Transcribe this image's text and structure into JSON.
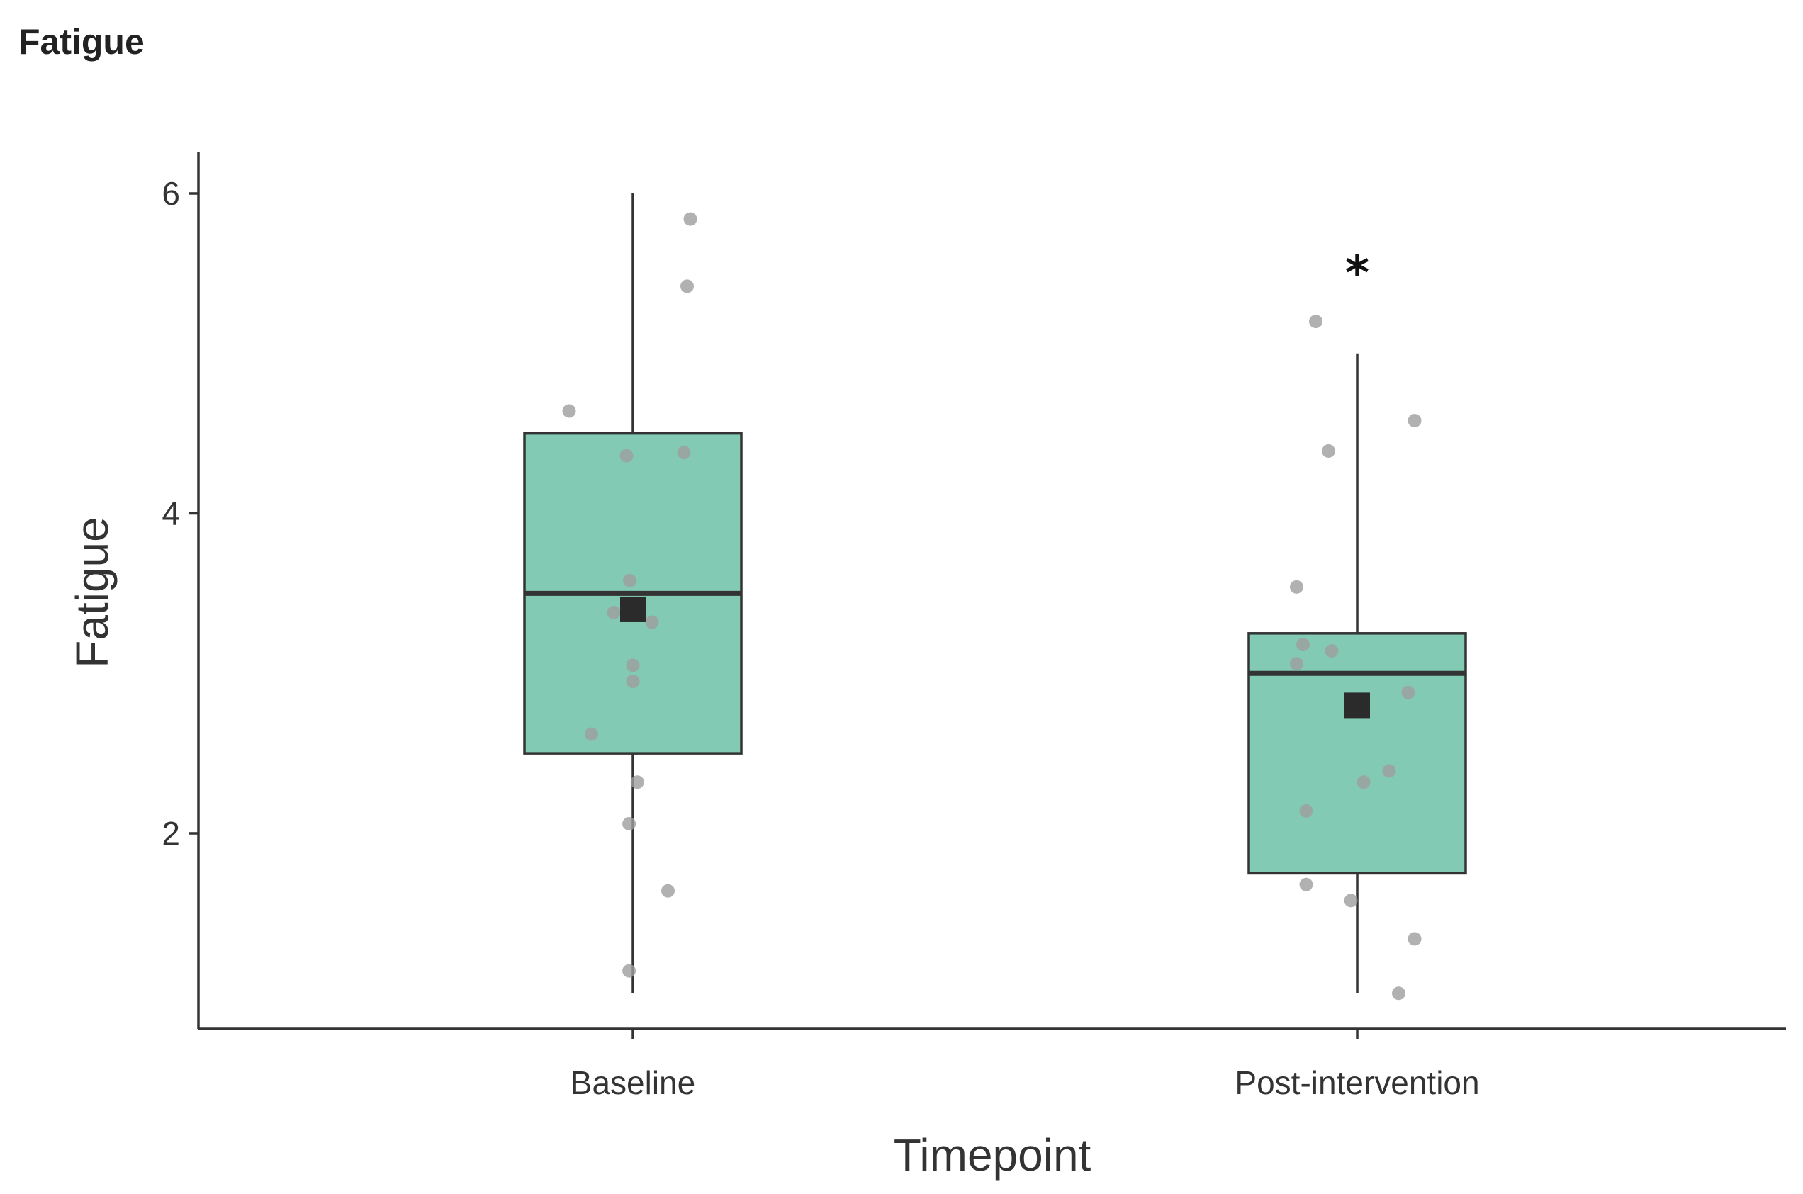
{
  "title": "Fatigue",
  "colors": {
    "box_fill": "#82cab3",
    "box_stroke": "#333333",
    "median": "#333333",
    "mean_marker": "#2b2b2b",
    "points": "#9e9e9e",
    "axis": "#333333"
  },
  "chart_data": {
    "type": "boxplot",
    "title": "Fatigue",
    "xlabel": "Timepoint",
    "ylabel": "Fatigue",
    "ylim": [
      0.75,
      6.25
    ],
    "yticks": [
      2,
      4,
      6
    ],
    "categories": [
      "Baseline",
      "Post-intervention"
    ],
    "boxes": [
      {
        "category": "Baseline",
        "whisker_low": 1.0,
        "q1": 2.5,
        "median": 3.5,
        "q3": 4.5,
        "whisker_high": 6.0,
        "mean": 3.4,
        "points": [
          {
            "jitter": 0.09,
            "y": 5.84
          },
          {
            "jitter": 0.085,
            "y": 5.42
          },
          {
            "jitter": -0.1,
            "y": 4.64
          },
          {
            "jitter": -0.01,
            "y": 4.36
          },
          {
            "jitter": 0.08,
            "y": 4.38
          },
          {
            "jitter": -0.03,
            "y": 3.38
          },
          {
            "jitter": -0.005,
            "y": 3.58
          },
          {
            "jitter": 0.03,
            "y": 3.32
          },
          {
            "jitter": 0.0,
            "y": 3.05
          },
          {
            "jitter": 0.0,
            "y": 2.95
          },
          {
            "jitter": -0.065,
            "y": 2.62
          },
          {
            "jitter": 0.007,
            "y": 2.32
          },
          {
            "jitter": -0.006,
            "y": 2.06
          },
          {
            "jitter": 0.055,
            "y": 1.64
          },
          {
            "jitter": -0.006,
            "y": 1.14
          }
        ]
      },
      {
        "category": "Post-intervention",
        "whisker_low": 1.0,
        "q1": 1.75,
        "median": 3.0,
        "q3": 3.25,
        "whisker_high": 5.0,
        "mean": 2.8,
        "annotation": "*",
        "points": [
          {
            "jitter": -0.065,
            "y": 5.2
          },
          {
            "jitter": 0.09,
            "y": 4.58
          },
          {
            "jitter": -0.045,
            "y": 4.39
          },
          {
            "jitter": -0.095,
            "y": 3.54
          },
          {
            "jitter": -0.085,
            "y": 3.18
          },
          {
            "jitter": -0.04,
            "y": 3.14
          },
          {
            "jitter": -0.095,
            "y": 3.06
          },
          {
            "jitter": 0.08,
            "y": 2.88
          },
          {
            "jitter": 0.05,
            "y": 2.39
          },
          {
            "jitter": 0.01,
            "y": 2.32
          },
          {
            "jitter": -0.08,
            "y": 2.14
          },
          {
            "jitter": -0.08,
            "y": 1.68
          },
          {
            "jitter": -0.01,
            "y": 1.58
          },
          {
            "jitter": 0.09,
            "y": 1.34
          },
          {
            "jitter": 0.065,
            "y": 1.0
          }
        ]
      }
    ]
  }
}
